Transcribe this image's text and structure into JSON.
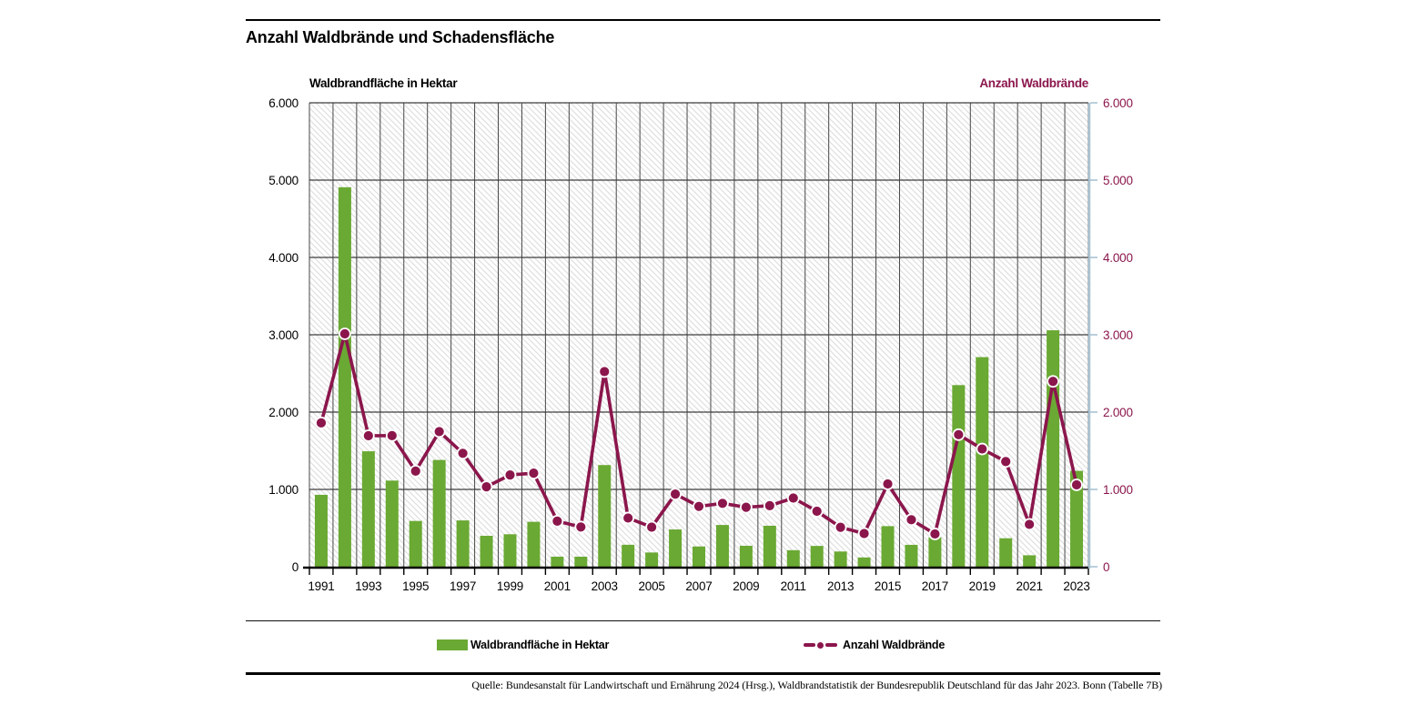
{
  "header": {
    "title": "Anzahl Waldbrände und Schadensfläche"
  },
  "chart_data": {
    "type": "bar",
    "x": [
      1991,
      1992,
      1993,
      1994,
      1995,
      1996,
      1997,
      1998,
      1999,
      2000,
      2001,
      2002,
      2003,
      2004,
      2005,
      2006,
      2007,
      2008,
      2009,
      2010,
      2011,
      2012,
      2013,
      2014,
      2015,
      2016,
      2017,
      2018,
      2019,
      2020,
      2021,
      2022,
      2023
    ],
    "series": [
      {
        "name": "Waldbrandfläche in Hektar",
        "type": "bar",
        "axis": "left",
        "color": "#6aa933",
        "values": [
          930,
          4908,
          1493,
          1114,
          592,
          1381,
          599,
          400,
          420,
          581,
          130,
          130,
          1315,
          284,
          184,
          482,
          262,
          540,
          271,
          530,
          214,
          269,
          197,
          120,
          525,
          283,
          380,
          2349,
          2711,
          368,
          148,
          3058,
          1240
        ]
      },
      {
        "name": "Anzahl Waldbrände",
        "type": "line",
        "axis": "right",
        "color": "#8b164c",
        "values": [
          1860,
          3012,
          1694,
          1696,
          1237,
          1748,
          1467,
          1034,
          1187,
          1210,
          590,
          514,
          2524,
          630,
          512,
          940,
          780,
          820,
          769,
          790,
          888,
          718,
          510,
          429,
          1071,
          608,
          424,
          1708,
          1523,
          1360,
          548,
          2397,
          1059
        ]
      }
    ],
    "title": "Anzahl Waldbrände und Schadensfläche",
    "ylabel_left": "Waldbrandfläche in Hektar",
    "ylabel_right": "Anzahl Waldbrände",
    "ylim_left": [
      0,
      6000
    ],
    "ylim_right": [
      0,
      6000
    ],
    "ytick_labels": [
      "0",
      "1.000",
      "2.000",
      "3.000",
      "4.000",
      "5.000",
      "6.000"
    ],
    "xtick_label_years": [
      "1991",
      "1993",
      "1995",
      "1997",
      "1999",
      "2001",
      "2003",
      "2005",
      "2007",
      "2009",
      "2011",
      "2013",
      "2015",
      "2017",
      "2019",
      "2021",
      "2023"
    ],
    "grid": true,
    "legend_position": "bottom"
  },
  "legend": {
    "area_label": "Waldbrandfläche in Hektar",
    "line_label": "Anzahl Waldbrände"
  },
  "footer": {
    "source": "Quelle: Bundesanstalt für Landwirtschaft und Ernährung 2024 (Hrsg.), Waldbrandstatistik der Bundesrepublik Deutschland für das Jahr 2023. Bonn (Tabelle 7B)"
  },
  "colors": {
    "bar_green": "#6aa933",
    "line_maroon": "#8b164c",
    "right_axis_blue": "#a9c3d3",
    "gridline": "#3d3d3d",
    "hatch": "#dcdcdc"
  }
}
